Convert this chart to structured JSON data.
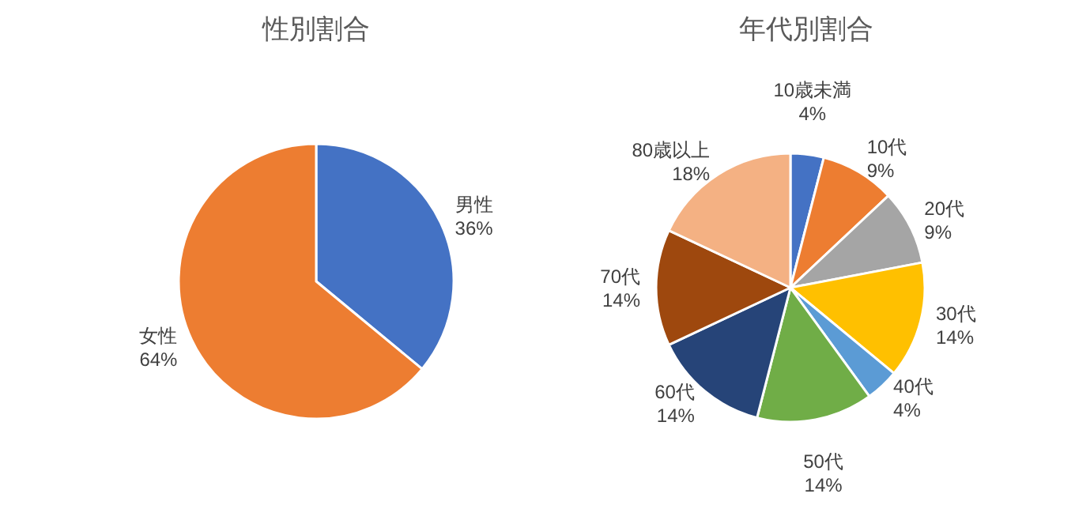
{
  "chart_data": [
    {
      "type": "pie",
      "title": "性別割合",
      "categories": [
        "男性",
        "女性"
      ],
      "values": [
        36,
        64
      ],
      "colors": [
        "#4472c4",
        "#ed7d31"
      ],
      "value_labels": [
        "36%",
        "64%"
      ]
    },
    {
      "type": "pie",
      "title": "年代別割合",
      "categories": [
        "10歳未満",
        "10代",
        "20代",
        "30代",
        "40代",
        "50代",
        "60代",
        "70代",
        "80歳以上"
      ],
      "values": [
        4,
        9,
        9,
        14,
        4,
        14,
        14,
        14,
        18
      ],
      "colors": [
        "#4472c4",
        "#ed7d31",
        "#a5a5a5",
        "#ffc000",
        "#5b9bd5",
        "#70ad47",
        "#264478",
        "#9e480e",
        "#f4b183"
      ],
      "value_labels": [
        "4%",
        "9%",
        "9%",
        "14%",
        "4%",
        "14%",
        "14%",
        "14%",
        "18%"
      ]
    }
  ]
}
